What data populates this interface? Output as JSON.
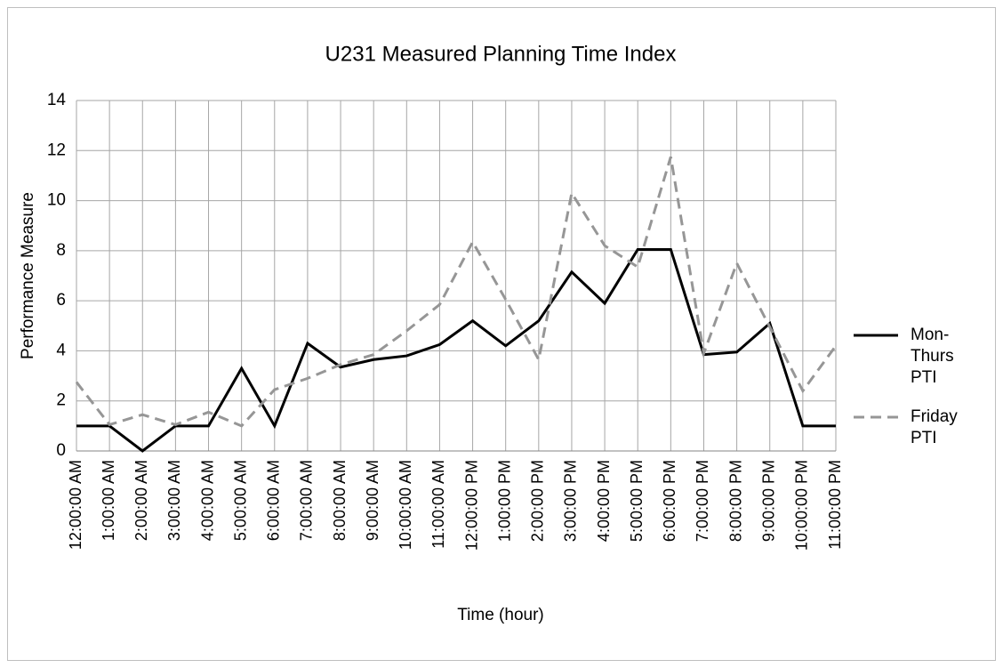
{
  "chart_data": {
    "type": "line",
    "title": "U231 Measured Planning Time Index",
    "x_label": "Time (hour)",
    "y_label": "Performance Measure",
    "categories": [
      "12:00:00 AM",
      "1:00:00 AM",
      "2:00:00 AM",
      "3:00:00 AM",
      "4:00:00 AM",
      "5:00:00 AM",
      "6:00:00 AM",
      "7:00:00 AM",
      "8:00:00 AM",
      "9:00:00 AM",
      "10:00:00 AM",
      "11:00:00 AM",
      "12:00:00 PM",
      "1:00:00 PM",
      "2:00:00 PM",
      "3:00:00 PM",
      "4:00:00 PM",
      "5:00:00 PM",
      "6:00:00 PM",
      "7:00:00 PM",
      "8:00:00 PM",
      "9:00:00 PM",
      "10:00:00 PM",
      "11:00:00 PM"
    ],
    "series": [
      {
        "name": "Mon-Thurs PTI",
        "color": "#000000",
        "dash": "solid",
        "values": [
          1,
          1,
          0,
          1,
          1,
          3.3,
          1,
          4.3,
          3.35,
          3.65,
          3.8,
          4.25,
          5.2,
          4.2,
          5.2,
          7.15,
          5.9,
          8.05,
          8.05,
          3.85,
          3.95,
          5.1,
          1,
          1
        ]
      },
      {
        "name": "Friday PTI",
        "color": "#969696",
        "dash": "dashed",
        "values": [
          2.75,
          1.05,
          1.45,
          1.05,
          1.55,
          1.0,
          2.45,
          2.9,
          3.45,
          3.85,
          4.8,
          5.85,
          8.35,
          6.05,
          3.65,
          10.3,
          8.2,
          7.35,
          11.75,
          3.9,
          7.5,
          4.95,
          2.4,
          4.2
        ]
      }
    ],
    "ylim": [
      0,
      14
    ],
    "yticks": [
      0,
      2,
      4,
      6,
      8,
      10,
      12,
      14
    ],
    "grid": true,
    "legend": "right"
  }
}
